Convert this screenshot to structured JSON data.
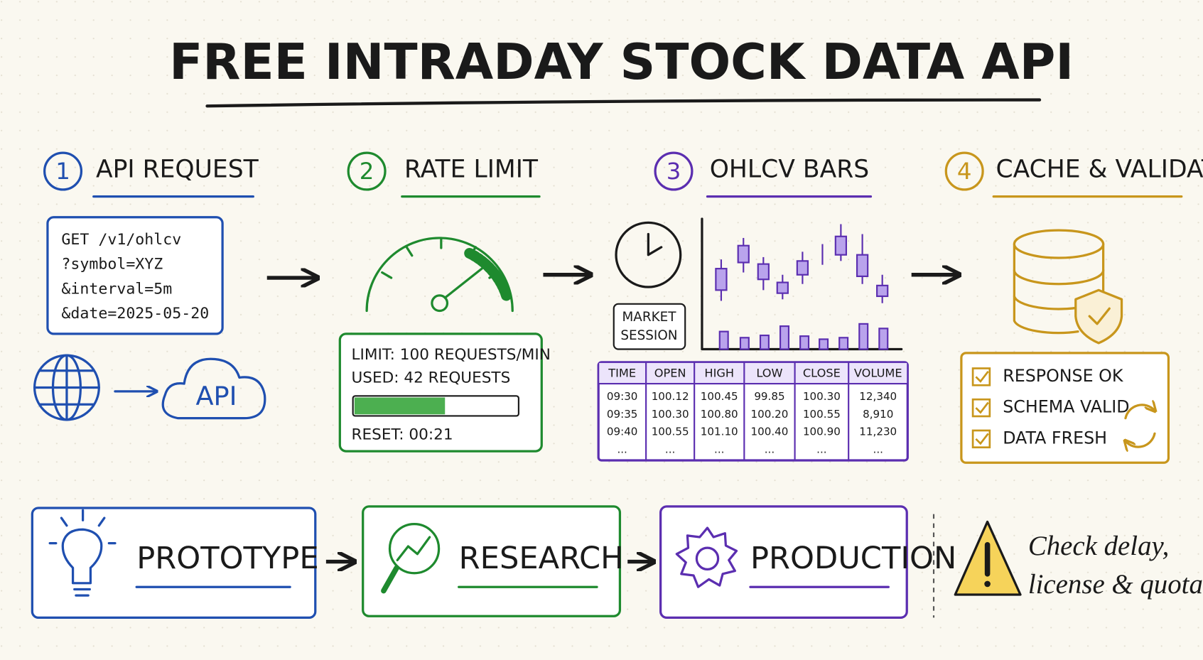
{
  "title": "FREE INTRADAY STOCK DATA API",
  "steps": [
    {
      "number": "1",
      "label": "API REQUEST"
    },
    {
      "number": "2",
      "label": "RATE LIMIT"
    },
    {
      "number": "3",
      "label": "OHLCV BARS"
    },
    {
      "number": "4",
      "label": "CACHE & VALIDATE"
    }
  ],
  "request": {
    "lines": [
      "GET /v1/ohlcv",
      "?symbol=XYZ",
      "&interval=5m",
      "&date=2025-05-20"
    ],
    "cloud_label": "API"
  },
  "rate_limit": {
    "lines": [
      "LIMIT: 100 REQUESTS/MIN",
      "USED: 42 REQUESTS",
      "RESET: 00:21"
    ]
  },
  "bars": {
    "session_label": [
      "MARKET",
      "SESSION"
    ],
    "table": {
      "header": [
        "TIME",
        "OPEN",
        "HIGH",
        "LOW",
        "CLOSE",
        "VOLUME"
      ],
      "rows": [
        [
          "09:30",
          "100.12",
          "100.45",
          "99.85",
          "100.30",
          "12,340"
        ],
        [
          "09:35",
          "100.30",
          "100.80",
          "100.20",
          "100.55",
          "8,910"
        ],
        [
          "09:40",
          "100.55",
          "101.10",
          "100.40",
          "100.90",
          "11,230"
        ],
        [
          "...",
          "...",
          "...",
          "...",
          "...",
          "..."
        ]
      ]
    }
  },
  "cache": {
    "checks": [
      "RESPONSE OK",
      "SCHEMA VALID",
      "DATA FRESH"
    ]
  },
  "uses": [
    {
      "label": "PROTOTYPE"
    },
    {
      "label": "RESEARCH"
    },
    {
      "label": "PRODUCTION"
    }
  ],
  "note": [
    "Check delay,",
    "license & quota"
  ]
}
